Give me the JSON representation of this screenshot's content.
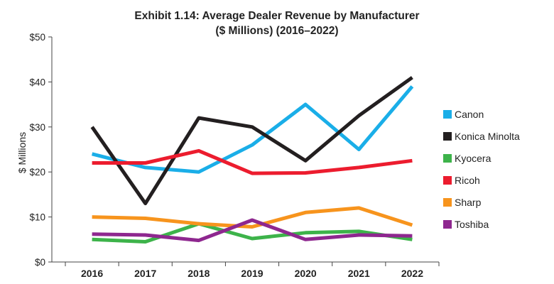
{
  "chart_data": {
    "type": "line",
    "title_lines": [
      "Exhibit 1.14: Average Dealer Revenue by Manufacturer",
      "($ Millions) (2016–2022)"
    ],
    "xlabel": "",
    "ylabel": "$ Millions",
    "x": [
      "2016",
      "2017",
      "2018",
      "2019",
      "2020",
      "2021",
      "2022"
    ],
    "ylim": [
      0,
      50
    ],
    "yticks": [
      0,
      10,
      20,
      30,
      40,
      50
    ],
    "ytick_labels": [
      "$0",
      "$10",
      "$20",
      "$30",
      "$40",
      "$50"
    ],
    "grid": false,
    "legend_position": "right",
    "series": [
      {
        "name": "Canon",
        "color": "#1aaee8",
        "values": [
          24,
          21,
          20,
          26,
          35,
          25,
          39
        ]
      },
      {
        "name": "Konica Minolta",
        "color": "#231f20",
        "values": [
          30,
          13,
          32,
          30,
          22.5,
          32.5,
          41
        ]
      },
      {
        "name": "Kyocera",
        "color": "#3db34a",
        "values": [
          5,
          4.5,
          8.5,
          5.2,
          6.5,
          6.8,
          5
        ]
      },
      {
        "name": "Ricoh",
        "color": "#ec1c2e",
        "values": [
          22,
          22,
          24.7,
          19.7,
          19.8,
          21,
          22.5
        ]
      },
      {
        "name": "Sharp",
        "color": "#f7941d",
        "values": [
          10,
          9.7,
          8.5,
          7.8,
          11,
          12,
          8.2
        ]
      },
      {
        "name": "Toshiba",
        "color": "#8e278f",
        "values": [
          6.2,
          6,
          4.8,
          9.3,
          5,
          6,
          5.8
        ]
      }
    ]
  }
}
